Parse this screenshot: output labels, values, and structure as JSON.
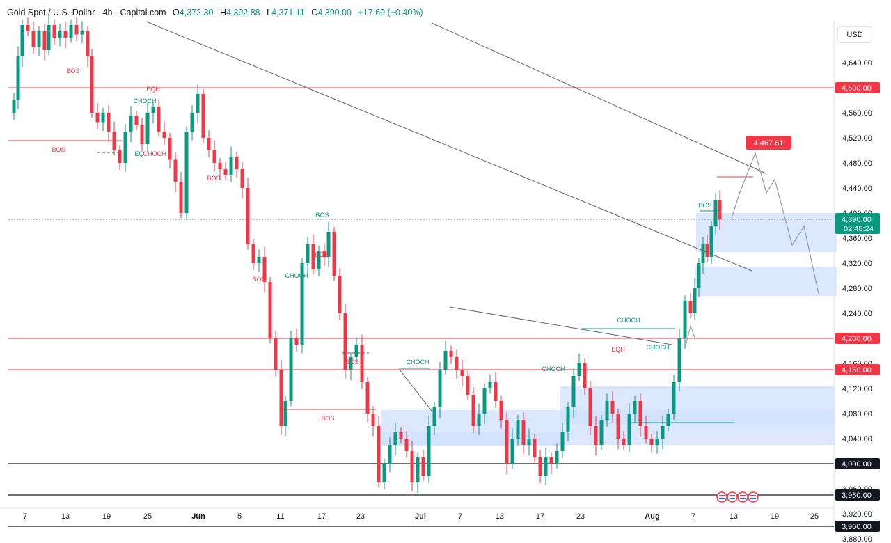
{
  "header": {
    "symbol": "Gold Spot / U.S. Dollar · 4h · Capital.com",
    "open_label": "O",
    "open": "4,372.30",
    "high_label": "H",
    "high": "4,392.88",
    "low_label": "L",
    "low": "4,371.11",
    "close_label": "C",
    "close": "4,390.00",
    "change": "+17.69 (+0.40%)"
  },
  "currency": "USD",
  "colors": {
    "bull": "#089981",
    "bear": "#f23645",
    "level": "#f23645",
    "zone": "#cfe0ff"
  },
  "chart_data": {
    "type": "candlestick",
    "y_ticks": [
      "4,640.00",
      "4,600.00",
      "4,560.00",
      "4,520.00",
      "4,480.00",
      "4,440.00",
      "4,400.00",
      "4,360.00",
      "4,320.00",
      "4,280.00",
      "4,240.00",
      "4,200.00",
      "4,160.00",
      "4,120.00",
      "4,080.00",
      "4,040.00",
      "4,000.00",
      "3,960.00",
      "3,920.00",
      "3,880.00"
    ],
    "x_ticks": [
      "7",
      "13",
      "19",
      "25",
      "Jun",
      "5",
      "11",
      "17",
      "23",
      "Jul",
      "7",
      "13",
      "17",
      "23",
      "Aug",
      "7",
      "13",
      "19",
      "25"
    ],
    "ylim": [
      3860,
      4670
    ],
    "current_price": {
      "value": 4390,
      "label": "4,390.00",
      "countdown": "02:48:24"
    },
    "projection_target": {
      "value": 4467.61,
      "label": "4,467.61"
    },
    "levels": [
      {
        "value": 4600,
        "label": "4,600.00",
        "color": "red"
      },
      {
        "value": 4200,
        "label": "4,200.00",
        "color": "red"
      },
      {
        "value": 4150,
        "label": "4,150.00",
        "color": "red"
      },
      {
        "value": 4000,
        "label": "4,000.00",
        "color": "black"
      },
      {
        "value": 3950,
        "label": "3,950.00",
        "color": "black"
      },
      {
        "value": 3900,
        "label": "3,900.00",
        "color": "black"
      }
    ],
    "annotations": [
      {
        "text": "BOS",
        "color": "red"
      },
      {
        "text": "EQH",
        "color": "red"
      },
      {
        "text": "CHOCH",
        "color": "green"
      },
      {
        "text": "BOS",
        "color": "red"
      },
      {
        "text": "EQ",
        "color": "green"
      },
      {
        "text": "CHOCH",
        "color": "red"
      },
      {
        "text": "BOS",
        "color": "red"
      },
      {
        "text": "BOS",
        "color": "green"
      },
      {
        "text": "BOS",
        "color": "red"
      },
      {
        "text": "CHOCH",
        "color": "green"
      },
      {
        "text": "BOS",
        "color": "red"
      },
      {
        "text": "BOS",
        "color": "red"
      },
      {
        "text": "BOS",
        "color": "red"
      },
      {
        "text": "CHOCH",
        "color": "green"
      },
      {
        "text": "CHOCH",
        "color": "green"
      },
      {
        "text": "EQH",
        "color": "red"
      },
      {
        "text": "CHOCH",
        "color": "green"
      },
      {
        "text": "CHOCH",
        "color": "green"
      },
      {
        "text": "BOS",
        "color": "green"
      }
    ],
    "grid": false
  }
}
